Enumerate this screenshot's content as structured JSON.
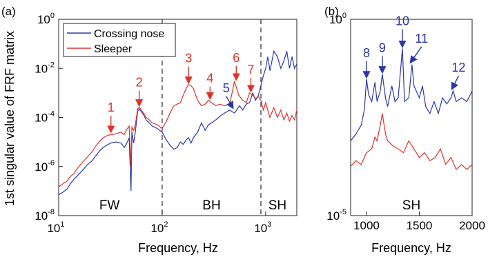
{
  "colors": {
    "blue": "#2a36a8",
    "red": "#e0302a",
    "grid_dash": "#444444"
  },
  "chart_data": [
    {
      "panel": "(a)",
      "type": "line",
      "xscale": "log",
      "yscale": "log",
      "xlim": [
        10,
        2000
      ],
      "ylim": [
        1e-08,
        1
      ],
      "xlabel": "Frequency, Hz",
      "ylabel": "1st singular value of FRF matrix",
      "x_ticks": [
        "10",
        "100",
        "1000"
      ],
      "y_ticks": [
        "-8",
        "-6",
        "-4",
        "-2",
        "0"
      ],
      "legend": [
        "Crossing nose",
        "Sleeper"
      ],
      "legend_position": "top-left",
      "region_boundaries": [
        100,
        900
      ],
      "regions": [
        "FW",
        "BH",
        "SH"
      ],
      "series": [
        {
          "name": "Crossing nose",
          "color": "blue",
          "points": [
            [
              10,
              7e-08
            ],
            [
              11,
              9e-08
            ],
            [
              12,
              1.2e-07
            ],
            [
              13,
              2e-07
            ],
            [
              14,
              3e-07
            ],
            [
              15,
              4e-07
            ],
            [
              17,
              7e-07
            ],
            [
              19,
              1.2e-06
            ],
            [
              21,
              1.7e-06
            ],
            [
              23,
              2.8e-06
            ],
            [
              25,
              4.5e-06
            ],
            [
              27,
              6e-06
            ],
            [
              30,
              8e-06
            ],
            [
              33,
              9.5e-06
            ],
            [
              36,
              1e-05
            ],
            [
              40,
              9e-06
            ],
            [
              43,
              6e-06
            ],
            [
              45,
              8e-06
            ],
            [
              48,
              1.5e-05
            ],
            [
              50,
              1e-07
            ],
            [
              51,
              2.5e-05
            ],
            [
              53,
              9e-06
            ],
            [
              55,
              2.5e-05
            ],
            [
              58,
              0.00018
            ],
            [
              60,
              0.00022
            ],
            [
              63,
              0.00017
            ],
            [
              66,
              0.00013
            ],
            [
              70,
              8e-05
            ],
            [
              75,
              6e-05
            ],
            [
              80,
              4.5e-05
            ],
            [
              90,
              3.5e-05
            ],
            [
              100,
              2.5e-05
            ],
            [
              110,
              1.2e-05
            ],
            [
              120,
              7e-06
            ],
            [
              130,
              5e-06
            ],
            [
              140,
              6e-06
            ],
            [
              150,
              1e-05
            ],
            [
              160,
              8e-06
            ],
            [
              170,
              1.2e-05
            ],
            [
              180,
              1.5e-05
            ],
            [
              190,
              9e-06
            ],
            [
              200,
              1.5e-05
            ],
            [
              220,
              2.5e-05
            ],
            [
              240,
              6e-05
            ],
            [
              260,
              3e-05
            ],
            [
              280,
              5e-05
            ],
            [
              300,
              6e-05
            ],
            [
              330,
              8e-05
            ],
            [
              360,
              0.00011
            ],
            [
              400,
              0.00015
            ],
            [
              450,
              0.0002
            ],
            [
              500,
              0.00015
            ],
            [
              560,
              0.0003
            ],
            [
              600,
              0.0002
            ],
            [
              650,
              0.00035
            ],
            [
              700,
              0.0004
            ],
            [
              750,
              0.001
            ],
            [
              800,
              0.0005
            ],
            [
              850,
              0.0008
            ],
            [
              900,
              0.002
            ],
            [
              950,
              0.005
            ],
            [
              1000,
              0.01
            ],
            [
              1050,
              0.03
            ],
            [
              1100,
              0.008
            ],
            [
              1150,
              0.02
            ],
            [
              1200,
              0.05
            ],
            [
              1300,
              0.03
            ],
            [
              1400,
              0.01
            ],
            [
              1500,
              0.02
            ],
            [
              1600,
              0.05
            ],
            [
              1700,
              0.01
            ],
            [
              1800,
              0.03
            ],
            [
              1900,
              0.01
            ],
            [
              2000,
              0.015
            ]
          ]
        },
        {
          "name": "Sleeper",
          "color": "red",
          "points": [
            [
              10,
              1.5e-07
            ],
            [
              11,
              2e-07
            ],
            [
              12,
              2.5e-07
            ],
            [
              13,
              4e-07
            ],
            [
              14,
              5e-07
            ],
            [
              15,
              8e-07
            ],
            [
              17,
              1.5e-06
            ],
            [
              19,
              2.5e-06
            ],
            [
              21,
              4e-06
            ],
            [
              23,
              7e-06
            ],
            [
              25,
              1.1e-05
            ],
            [
              27,
              1.5e-05
            ],
            [
              30,
              1.9e-05
            ],
            [
              33,
              2e-05
            ],
            [
              36,
              2.2e-05
            ],
            [
              40,
              2.5e-05
            ],
            [
              43,
              2e-05
            ],
            [
              45,
              3e-05
            ],
            [
              48,
              4.5e-05
            ],
            [
              50,
              1e-06
            ],
            [
              51,
              4e-05
            ],
            [
              53,
              3e-05
            ],
            [
              55,
              5e-05
            ],
            [
              58,
              0.00022
            ],
            [
              60,
              0.00026
            ],
            [
              63,
              0.0002
            ],
            [
              66,
              0.00015
            ],
            [
              70,
              0.0001
            ],
            [
              75,
              8e-05
            ],
            [
              80,
              6e-05
            ],
            [
              90,
              5e-05
            ],
            [
              100,
              3.5e-05
            ],
            [
              110,
              7e-05
            ],
            [
              120,
              0.00016
            ],
            [
              130,
              0.0003
            ],
            [
              140,
              0.00035
            ],
            [
              150,
              0.0004
            ],
            [
              160,
              0.0008
            ],
            [
              170,
              0.0015
            ],
            [
              180,
              0.0022
            ],
            [
              190,
              0.002
            ],
            [
              200,
              0.0015
            ],
            [
              220,
              0.0005
            ],
            [
              240,
              0.0003
            ],
            [
              260,
              0.00035
            ],
            [
              280,
              0.0005
            ],
            [
              300,
              0.0004
            ],
            [
              330,
              0.0003
            ],
            [
              360,
              0.00035
            ],
            [
              400,
              0.0003
            ],
            [
              450,
              0.00035
            ],
            [
              500,
              0.003
            ],
            [
              550,
              0.0008
            ],
            [
              600,
              0.0005
            ],
            [
              650,
              0.0004
            ],
            [
              700,
              0.001
            ],
            [
              750,
              0.0008
            ],
            [
              800,
              0.0006
            ],
            [
              850,
              0.0007
            ],
            [
              900,
              0.0005
            ],
            [
              950,
              0.0002
            ],
            [
              1000,
              0.0004
            ],
            [
              1100,
              0.0001
            ],
            [
              1200,
              0.00025
            ],
            [
              1300,
              0.0001
            ],
            [
              1400,
              0.0002
            ],
            [
              1500,
              8e-05
            ],
            [
              1600,
              0.00015
            ],
            [
              1700,
              7e-05
            ],
            [
              1800,
              0.00012
            ],
            [
              1900,
              8e-05
            ],
            [
              2000,
              0.0002
            ]
          ]
        }
      ],
      "annotations": [
        {
          "label": "1",
          "color": "red",
          "x": 32,
          "y": 2.2e-05
        },
        {
          "label": "2",
          "color": "red",
          "x": 60,
          "y": 0.00026
        },
        {
          "label": "3",
          "color": "red",
          "x": 180,
          "y": 0.0022
        },
        {
          "label": "4",
          "color": "red",
          "x": 290,
          "y": 0.0005
        },
        {
          "label": "5",
          "color": "blue",
          "x": 470,
          "y": 0.0002
        },
        {
          "label": "6",
          "color": "red",
          "x": 520,
          "y": 0.003
        },
        {
          "label": "7",
          "color": "red",
          "x": 720,
          "y": 0.001
        }
      ]
    },
    {
      "panel": "(b)",
      "type": "line",
      "xscale": "linear",
      "yscale": "log",
      "xlim": [
        850,
        2000
      ],
      "ylim": [
        1e-05,
        1
      ],
      "xlabel": "Frequency, Hz",
      "x_ticks": [
        "1000",
        "1500",
        "2000"
      ],
      "y_ticks": [
        "-5",
        "0"
      ],
      "regions": [
        "SH"
      ],
      "series": [
        {
          "name": "Crossing nose",
          "color": "blue",
          "points": [
            [
              850,
              0.0008
            ],
            [
              900,
              0.0012
            ],
            [
              950,
              0.002
            ],
            [
              980,
              0.005
            ],
            [
              1000,
              0.03
            ],
            [
              1020,
              0.012
            ],
            [
              1050,
              0.008
            ],
            [
              1080,
              0.025
            ],
            [
              1100,
              0.008
            ],
            [
              1130,
              0.015
            ],
            [
              1150,
              0.04
            ],
            [
              1180,
              0.01
            ],
            [
              1200,
              0.006
            ],
            [
              1240,
              0.02
            ],
            [
              1270,
              0.008
            ],
            [
              1300,
              0.01
            ],
            [
              1340,
              0.18
            ],
            [
              1360,
              0.008
            ],
            [
              1400,
              0.01
            ],
            [
              1430,
              0.07
            ],
            [
              1450,
              0.02
            ],
            [
              1500,
              0.01
            ],
            [
              1530,
              0.02
            ],
            [
              1560,
              0.006
            ],
            [
              1600,
              0.004
            ],
            [
              1640,
              0.008
            ],
            [
              1680,
              0.004
            ],
            [
              1720,
              0.01
            ],
            [
              1760,
              0.007
            ],
            [
              1800,
              0.01
            ],
            [
              1820,
              0.015
            ],
            [
              1850,
              0.008
            ],
            [
              1900,
              0.01
            ],
            [
              1950,
              0.008
            ],
            [
              2000,
              0.015
            ]
          ]
        },
        {
          "name": "Sleeper",
          "color": "red",
          "points": [
            [
              850,
              0.00018
            ],
            [
              900,
              0.00025
            ],
            [
              950,
              0.0002
            ],
            [
              1000,
              0.0004
            ],
            [
              1050,
              0.0005
            ],
            [
              1080,
              0.001
            ],
            [
              1100,
              0.0008
            ],
            [
              1130,
              0.002
            ],
            [
              1150,
              0.004
            ],
            [
              1180,
              0.0012
            ],
            [
              1200,
              0.0008
            ],
            [
              1250,
              0.0006
            ],
            [
              1300,
              0.0005
            ],
            [
              1350,
              0.0004
            ],
            [
              1400,
              0.0008
            ],
            [
              1450,
              0.0005
            ],
            [
              1500,
              0.0003
            ],
            [
              1550,
              0.0004
            ],
            [
              1600,
              0.00025
            ],
            [
              1650,
              0.0003
            ],
            [
              1700,
              0.0005
            ],
            [
              1750,
              0.0002
            ],
            [
              1800,
              0.0003
            ],
            [
              1850,
              0.00015
            ],
            [
              1900,
              0.0002
            ],
            [
              1950,
              0.00015
            ],
            [
              2000,
              0.0002
            ]
          ]
        }
      ],
      "annotations": [
        {
          "label": "8",
          "color": "blue",
          "x": 1000,
          "y": 0.03
        },
        {
          "label": "9",
          "color": "blue",
          "x": 1150,
          "y": 0.04
        },
        {
          "label": "10",
          "color": "blue",
          "x": 1340,
          "y": 0.18
        },
        {
          "label": "11",
          "color": "blue",
          "x": 1430,
          "y": 0.07
        },
        {
          "label": "12",
          "color": "blue",
          "x": 1820,
          "y": 0.015
        }
      ]
    }
  ]
}
